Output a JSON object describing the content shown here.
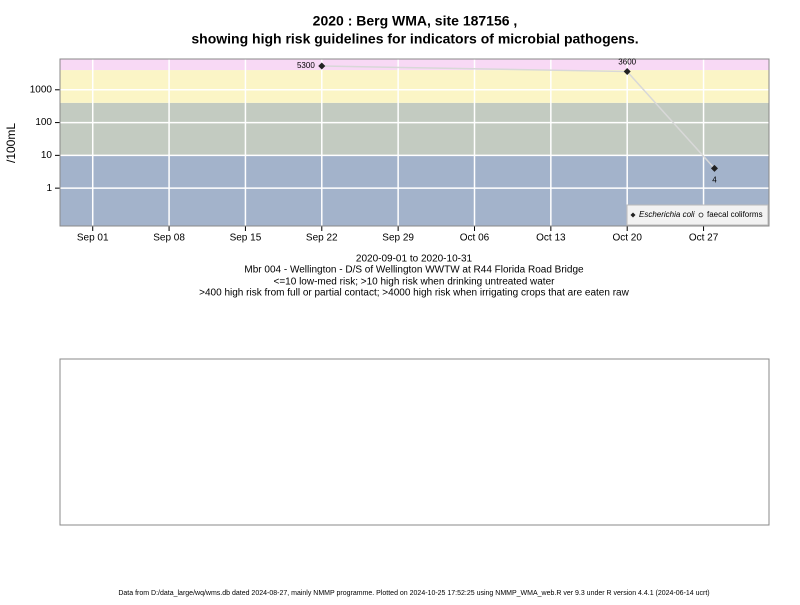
{
  "chart_data": {
    "type": "line",
    "title": "2020 : Berg WMA, site 187156 ,",
    "subtitle": "showing high risk guidelines for indicators of microbial pathogens.",
    "y_label": "/100mL",
    "notes": [
      "2020-09-01 to 2020-10-31",
      "Mbr 004 - Wellington - D/S of Wellington WWTW at R44 Florida Road Bridge",
      "<=10 low-med risk; >10 high risk when drinking untreated water",
      ">400 high risk from full or partial contact; >4000 high risk when irrigating crops that are eaten raw"
    ],
    "footer": "Data from D:/data_large/wq/wms.db dated 2024-08-27, mainly NMMP programme. Plotted on 2024-10-25 17:52:25 using NMMP_WMA_web.R ver 9.3 under R version 4.4.1 (2024-06-14 ucrt)",
    "x": [
      "2020-09-22",
      "2020-10-20",
      "2020-10-28"
    ],
    "series": [
      {
        "name": "Escherichia coli",
        "color": "#222222",
        "line_color": "#d8d8d8",
        "values": [
          5300,
          3600,
          4
        ]
      },
      {
        "name": "faecal coliforms",
        "color": "#222222",
        "values": [
          null,
          null,
          null
        ]
      }
    ],
    "xlim": [
      "2020-08-29",
      "2020-11-02"
    ],
    "xticks": [
      {
        "value": "2020-09-01",
        "label": "Sep 01"
      },
      {
        "value": "2020-09-08",
        "label": "Sep 08"
      },
      {
        "value": "2020-09-15",
        "label": "Sep 15"
      },
      {
        "value": "2020-09-22",
        "label": "Sep 22"
      },
      {
        "value": "2020-09-29",
        "label": "Sep 29"
      },
      {
        "value": "2020-10-06",
        "label": "Oct 06"
      },
      {
        "value": "2020-10-13",
        "label": "Oct 13"
      },
      {
        "value": "2020-10-20",
        "label": "Oct 20"
      },
      {
        "value": "2020-10-27",
        "label": "Oct 27"
      }
    ],
    "ylim": [
      0.07,
      8700
    ],
    "yticks": [
      1,
      10,
      100,
      1000
    ],
    "log_y": true,
    "grid": true,
    "band_edges": [
      10,
      400,
      4000
    ],
    "band_colors": [
      "#a3b3cb",
      "#c3cbc1",
      "#fbf5c6",
      "#f8d9f5"
    ],
    "legend": "bottom-right"
  }
}
